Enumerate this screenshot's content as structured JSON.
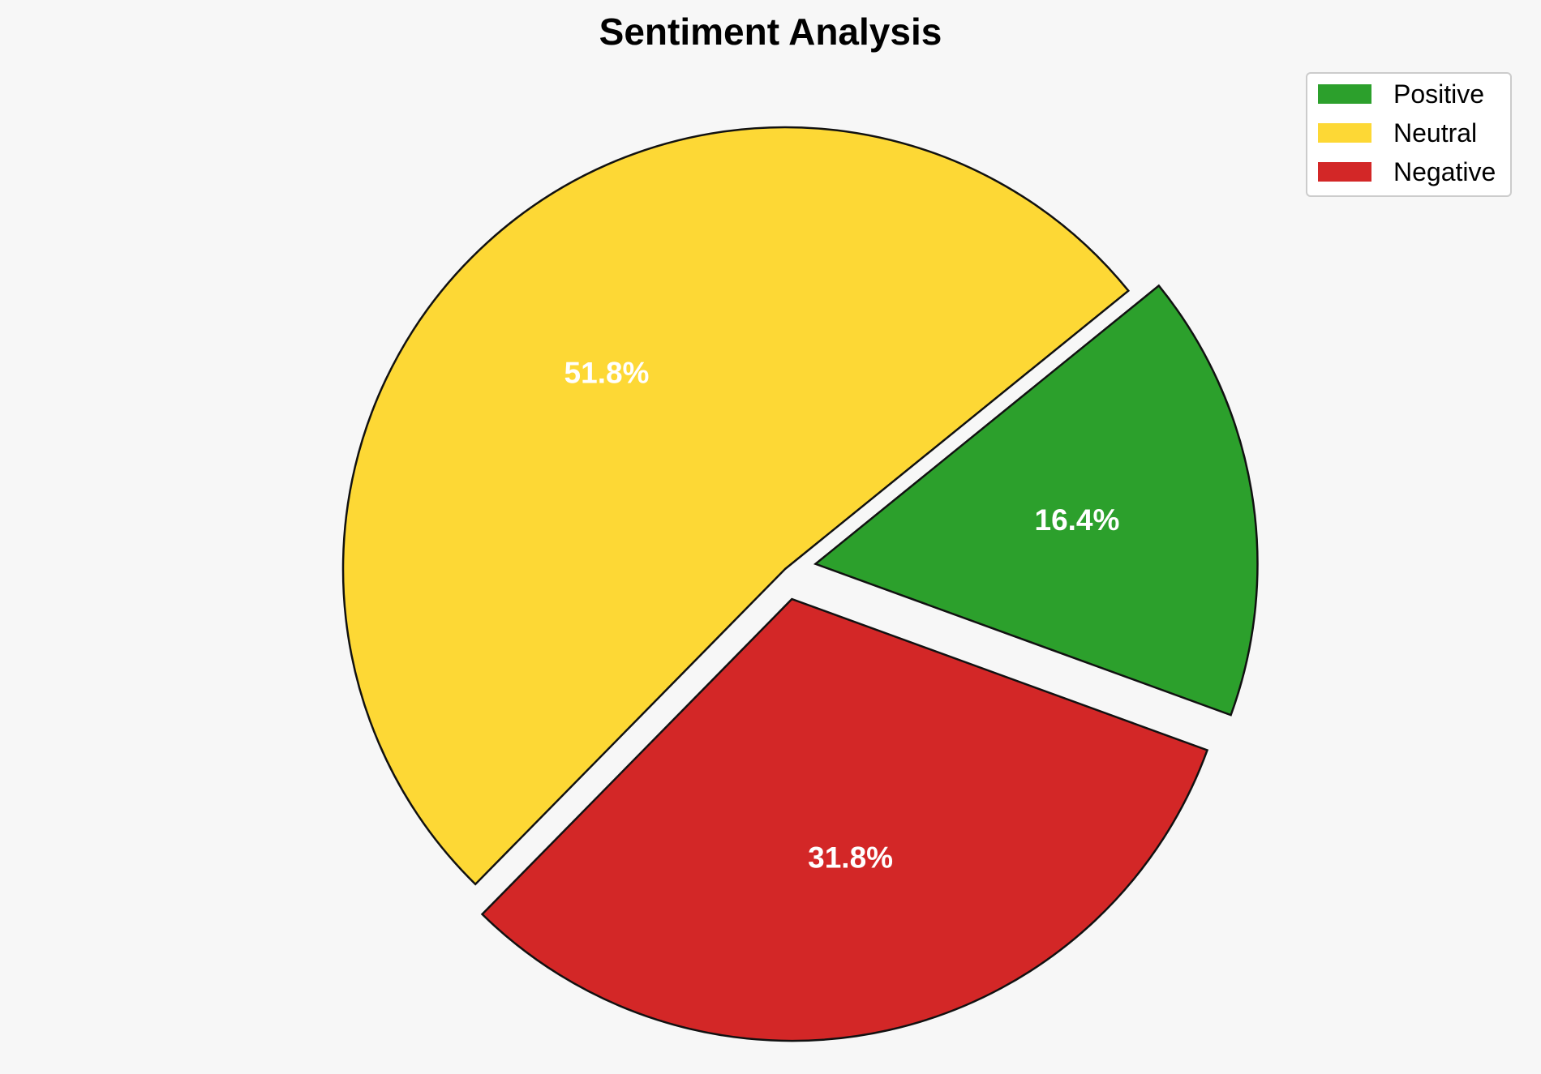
{
  "chart_data": {
    "type": "pie",
    "title": "Sentiment Analysis",
    "categories": [
      "Positive",
      "Neutral",
      "Negative"
    ],
    "values": [
      16.4,
      51.8,
      31.8
    ],
    "labels": [
      "16.4%",
      "51.8%",
      "31.8%"
    ],
    "colors": [
      "#2ca02c",
      "#fdd835",
      "#d32727"
    ],
    "exploded": [
      true,
      false,
      true
    ],
    "legend_position": "top-right"
  }
}
